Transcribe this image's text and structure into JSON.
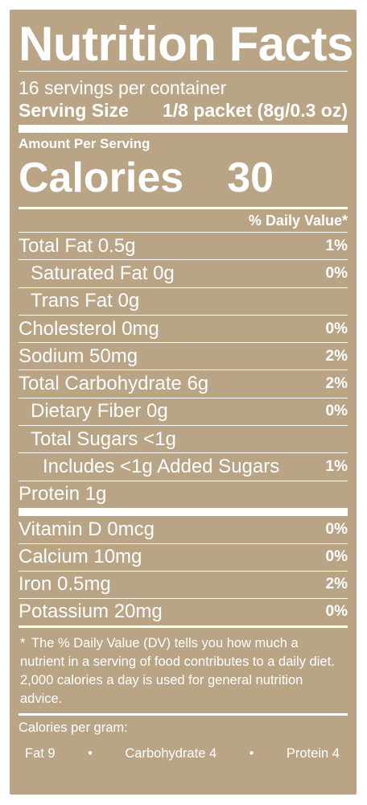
{
  "colors": {
    "panel": "#b9a486",
    "text": "#ffffff"
  },
  "title": "Nutrition Facts",
  "servings_per_container": "16 servings per container",
  "serving_size": {
    "label": "Serving Size",
    "value": "1/8 packet (8g/0.3 oz)"
  },
  "amount_per_serving": "Amount Per Serving",
  "calories": {
    "label": "Calories",
    "value": "30"
  },
  "dv_header": "% Daily Value*",
  "nutrients": [
    {
      "name": "Total Fat 0.5g",
      "dv": "1%"
    },
    {
      "name": "Saturated Fat 0g",
      "dv": "0%"
    },
    {
      "name": "Trans Fat 0g",
      "dv": ""
    },
    {
      "name": "Cholesterol 0mg",
      "dv": "0%"
    },
    {
      "name": "Sodium 50mg",
      "dv": "2%"
    },
    {
      "name": "Total Carbohydrate 6g",
      "dv": "2%"
    },
    {
      "name": "Dietary Fiber 0g",
      "dv": "0%"
    },
    {
      "name": "Total Sugars <1g",
      "dv": ""
    },
    {
      "name": "Includes <1g Added Sugars",
      "dv": "1%"
    },
    {
      "name": "Protein 1g",
      "dv": ""
    }
  ],
  "vitamins": [
    {
      "name": "Vitamin D 0mcg",
      "dv": "0%"
    },
    {
      "name": "Calcium 10mg",
      "dv": "0%"
    },
    {
      "name": "Iron 0.5mg",
      "dv": "2%"
    },
    {
      "name": "Potassium 20mg",
      "dv": "0%"
    }
  ],
  "footnote": {
    "star": "*",
    "text": "The % Daily Value (DV) tells you how much a nutrient in a serving of food contributes to a daily diet. 2,000 calories a day is used for general nutrition advice."
  },
  "calories_per_gram": {
    "title": "Calories per gram:",
    "fat": "Fat 9",
    "carbohydrate": "Carbohydrate 4",
    "protein": "Protein 4",
    "separator": "•"
  }
}
